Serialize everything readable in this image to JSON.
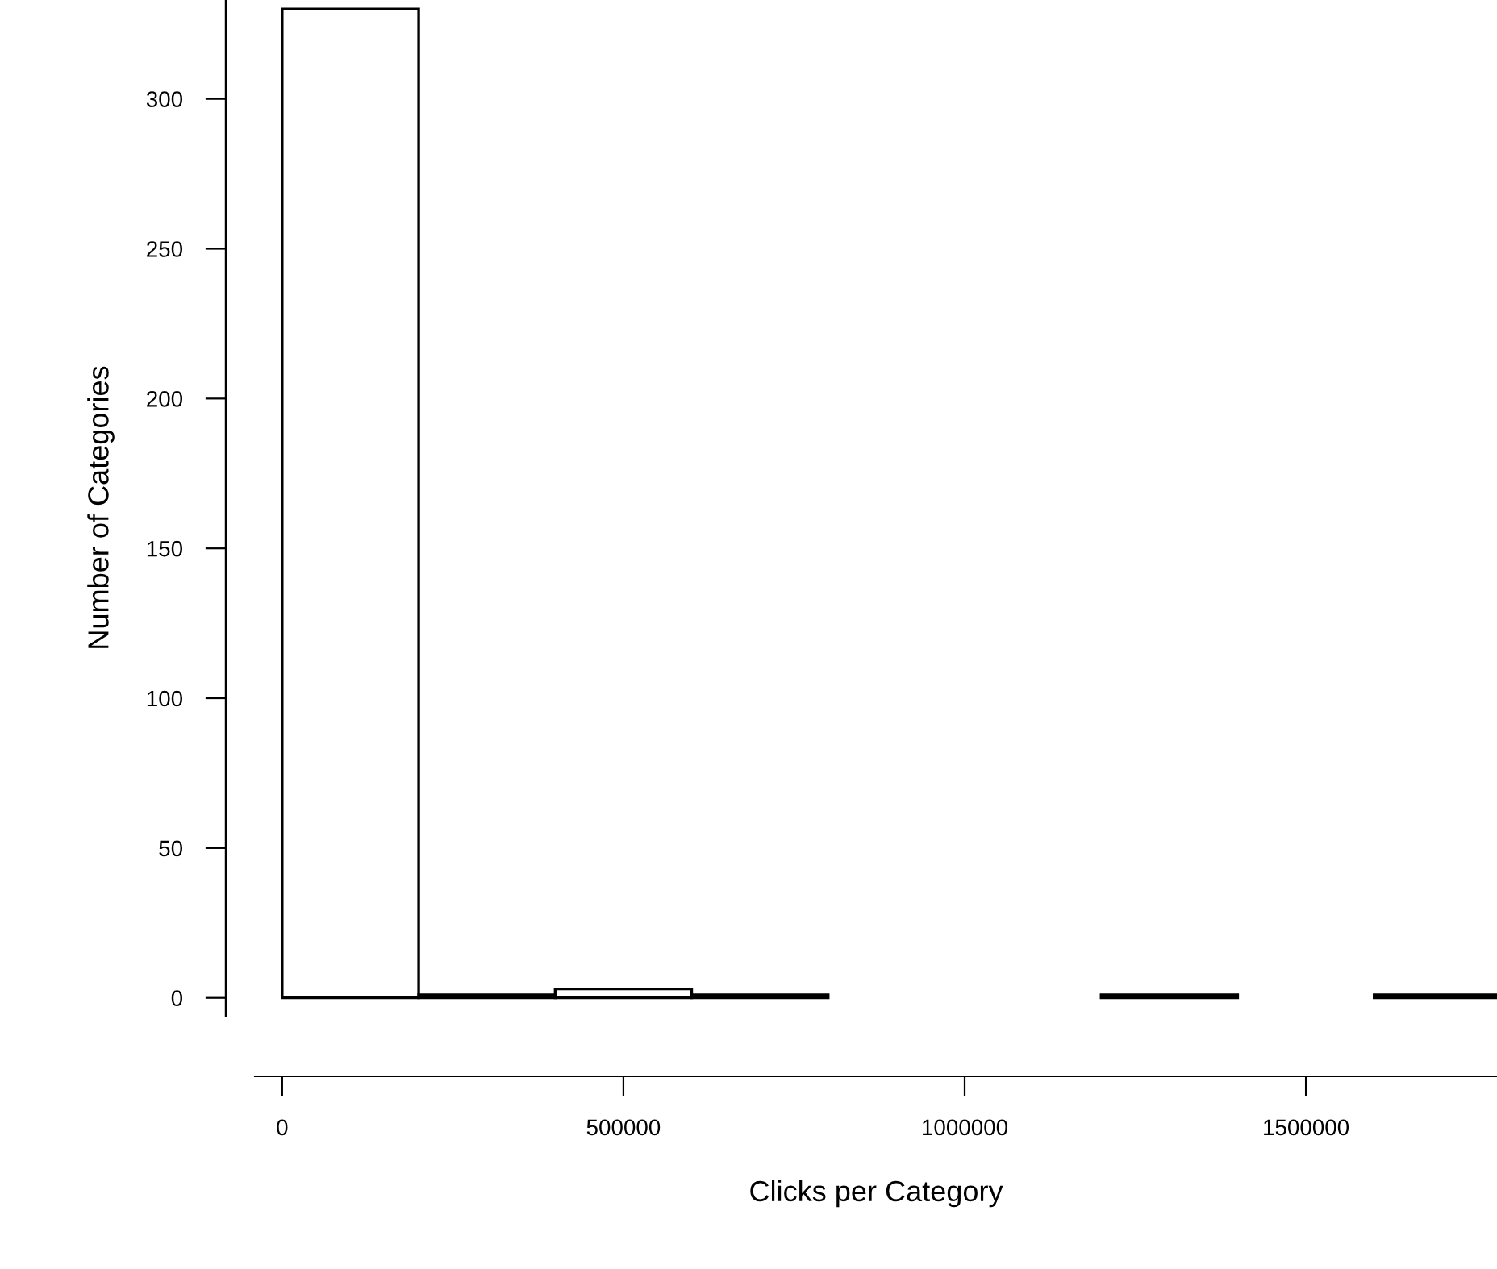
{
  "chart_data": {
    "type": "histogram",
    "xlabel": "Clicks per Category",
    "ylabel": "Number of Categories",
    "bins": [
      0,
      200000,
      400000,
      600000,
      800000,
      1000000,
      1200000,
      1400000,
      1600000,
      1800000
    ],
    "values": [
      330,
      1,
      3,
      1,
      0,
      0,
      1,
      0,
      1
    ],
    "color": "#ffffff",
    "xlim": [
      -40000,
      1780000
    ],
    "ylim": [
      -6,
      333
    ],
    "xticks": [
      0,
      500000,
      1000000,
      1500000
    ],
    "yticks": [
      0,
      50,
      100,
      150,
      200,
      250,
      300
    ],
    "grid": false,
    "legend": false
  }
}
